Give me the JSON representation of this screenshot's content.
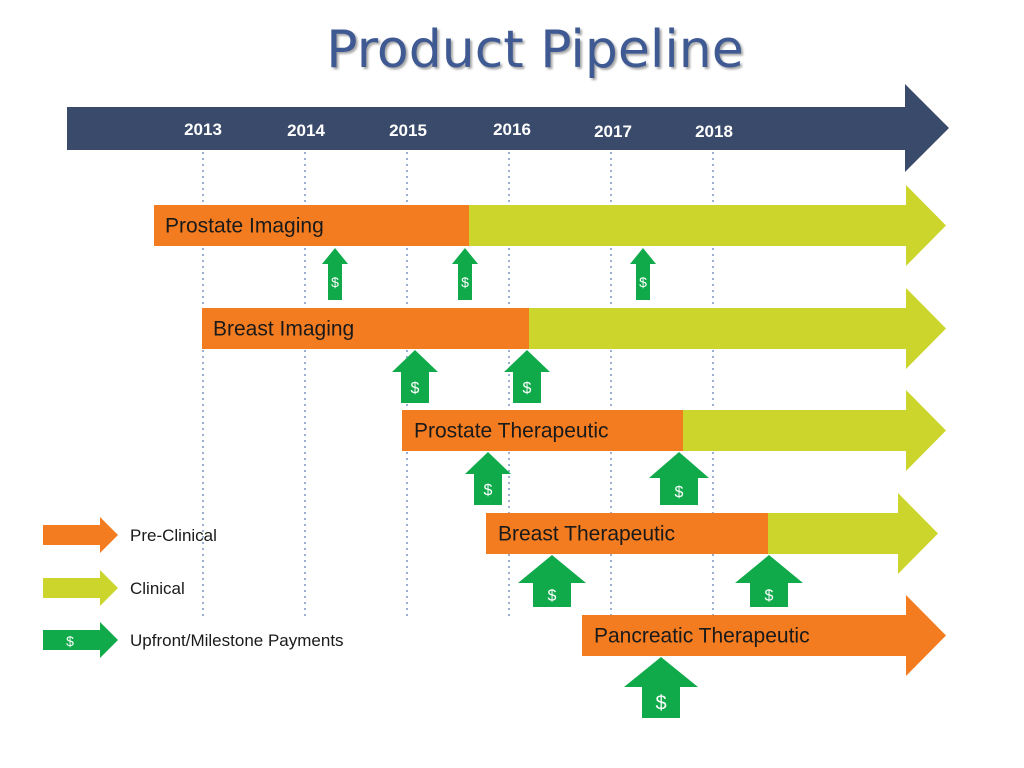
{
  "title": "Product Pipeline",
  "colors": {
    "timeline": "#3a4a6b",
    "preclinical": "#f47c20",
    "clinical": "#cbd52b",
    "payment": "#11aa4b",
    "gridline": "#9bb0cf",
    "title": "#3f5a93"
  },
  "timeline": {
    "years": [
      "2013",
      "2014",
      "2015",
      "2016",
      "2017",
      "2018"
    ]
  },
  "programs": [
    {
      "name": "Prostate Imaging",
      "preclinical": [
        2012.5,
        2015.6
      ],
      "clinical_end": "arrow",
      "payments": [
        2014.3,
        2015.6,
        2017.3
      ]
    },
    {
      "name": "Breast Imaging",
      "preclinical": [
        2013.0,
        2016.2
      ],
      "clinical_end": "arrow",
      "payments": [
        2015.1,
        2016.2
      ]
    },
    {
      "name": "Prostate Therapeutic",
      "preclinical": [
        2015.0,
        2017.8
      ],
      "clinical_end": "arrow",
      "payments": [
        2015.8,
        2017.7
      ]
    },
    {
      "name": "Breast Therapeutic",
      "preclinical": [
        2015.8,
        2018.5
      ],
      "clinical_end": "arrow",
      "payments": [
        2016.4,
        2018.5
      ]
    },
    {
      "name": "Pancreatic Therapeutic",
      "preclinical": [
        2016.8,
        "arrow"
      ],
      "clinical_end": null,
      "payments": [
        2017.5
      ]
    }
  ],
  "payment_symbol": "$",
  "legend": [
    {
      "key": "preclinical",
      "label": "Pre-Clinical"
    },
    {
      "key": "clinical",
      "label": "Clinical"
    },
    {
      "key": "payment",
      "label": "Upfront/Milestone Payments"
    }
  ]
}
